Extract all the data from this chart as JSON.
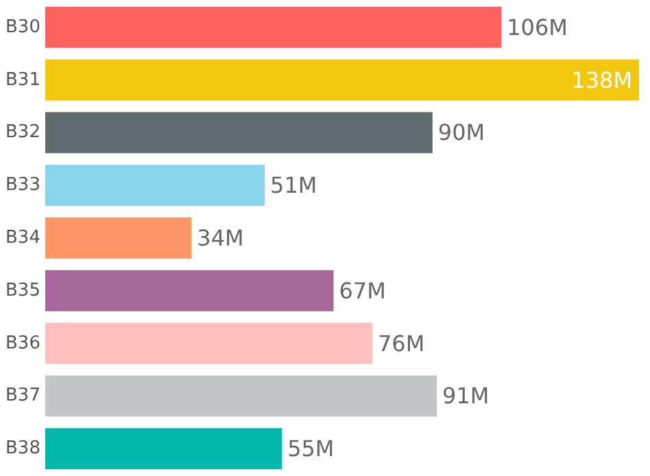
{
  "chart_data": {
    "type": "bar",
    "orientation": "horizontal",
    "categories": [
      "B30",
      "B31",
      "B32",
      "B33",
      "B34",
      "B35",
      "B36",
      "B37",
      "B38"
    ],
    "values": [
      106,
      138,
      90,
      51,
      34,
      67,
      76,
      91,
      55
    ],
    "colors": [
      "#fd625e",
      "#f2c80f",
      "#5f6b6d",
      "#8ad4eb",
      "#fe9666",
      "#a66999",
      "#ffbfbe",
      "#c3c6c6",
      "#01b8aa"
    ],
    "value_labels": [
      "106M",
      "138M",
      "90M",
      "51M",
      "34M",
      "67M",
      "76M",
      "91M",
      "55M"
    ]
  }
}
